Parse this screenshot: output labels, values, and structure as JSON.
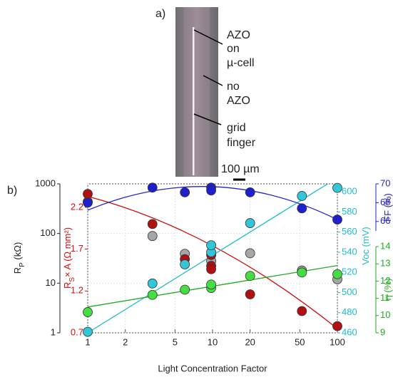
{
  "panel_a": {
    "tag": "a)",
    "labels": [
      [
        "AZO",
        "on",
        "µ-cell"
      ],
      [
        "no",
        "AZO"
      ],
      [
        "grid",
        "finger"
      ]
    ],
    "scale_bar": "100 µm"
  },
  "chart_data": {
    "type": "scatter",
    "tag": "b)",
    "x_label": "Light Concentration Factor",
    "xlog": true,
    "xlim": [
      1,
      100
    ],
    "xticks": [
      1,
      2,
      5,
      10,
      20,
      50,
      100
    ],
    "grid": true,
    "axes": {
      "rp": {
        "label": [
          "R",
          "P",
          " (kΩ)"
        ],
        "log": true,
        "lim": [
          1,
          1000
        ],
        "ticks": [
          1,
          10,
          100,
          1000
        ],
        "color": "#222222"
      },
      "rs": {
        "label": [
          "R",
          "S",
          "× A (Ω mm²)"
        ],
        "log": false,
        "lim": [
          0.7,
          2.48
        ],
        "ticks": [
          0.7,
          1.2,
          1.7,
          2.2
        ],
        "color": "#cc1111"
      },
      "voc": {
        "label": [
          "Voc (mV)"
        ],
        "log": false,
        "lim": [
          460,
          608
        ],
        "ticks": [
          460,
          480,
          500,
          520,
          540,
          560,
          580,
          600
        ],
        "color": "#22bbcc"
      },
      "ff": {
        "label": [
          "FF (%)"
        ],
        "log": false,
        "lim": [
          65,
          70
        ],
        "ticks": [
          66,
          68,
          70
        ],
        "color": "#2222cc"
      },
      "eta": {
        "label": [
          "η (%)"
        ],
        "log": false,
        "lim": [
          9,
          14
        ],
        "ticks": [
          9,
          10,
          11,
          12,
          13,
          14
        ],
        "color": "#22aa22"
      }
    },
    "series": [
      {
        "axis": "rp",
        "color": "#a6a6a6",
        "x": [
          1,
          3.3,
          6,
          9.75,
          20,
          52,
          100
        ],
        "values": [
          437,
          89,
          39,
          28,
          40,
          18,
          12
        ]
      },
      {
        "axis": "rs",
        "color": "#b01010",
        "x": [
          1,
          3.3,
          6,
          9.75,
          9.75,
          9.75,
          20,
          52,
          100
        ],
        "values": [
          2.36,
          2.0,
          1.58,
          1.63,
          1.5,
          1.46,
          1.16,
          0.96,
          0.78
        ],
        "fit_x": [
          1,
          10,
          100
        ],
        "fit": [
          2.33,
          1.74,
          0.75
        ]
      },
      {
        "axis": "voc",
        "color": "#33c5d8",
        "x": [
          1,
          3.3,
          6,
          9.75,
          9.75,
          20,
          52,
          100
        ],
        "values": [
          461,
          509,
          528,
          540,
          547,
          569,
          596,
          604
        ],
        "fit_x": [
          1,
          100
        ],
        "fit": [
          460,
          614
        ]
      },
      {
        "axis": "eta",
        "color": "#44dd44",
        "x": [
          1,
          3.3,
          6,
          9.75,
          9.75,
          20,
          52,
          100
        ],
        "values": [
          10.2,
          11.2,
          11.5,
          11.6,
          11.8,
          12.3,
          12.5,
          12.4
        ],
        "fit_x": [
          1,
          100
        ],
        "fit": [
          10.5,
          12.9
        ]
      },
      {
        "axis": "ff",
        "color": "#1f1fcc",
        "x": [
          1,
          3.3,
          6,
          9.75,
          9.75,
          20,
          52,
          100
        ],
        "values": [
          68.0,
          69.6,
          69.1,
          69.6,
          69.3,
          69.1,
          67.4,
          66.2
        ],
        "fit_x": [
          1,
          10,
          100
        ],
        "fit": [
          67.2,
          69.7,
          66.2
        ]
      }
    ]
  }
}
